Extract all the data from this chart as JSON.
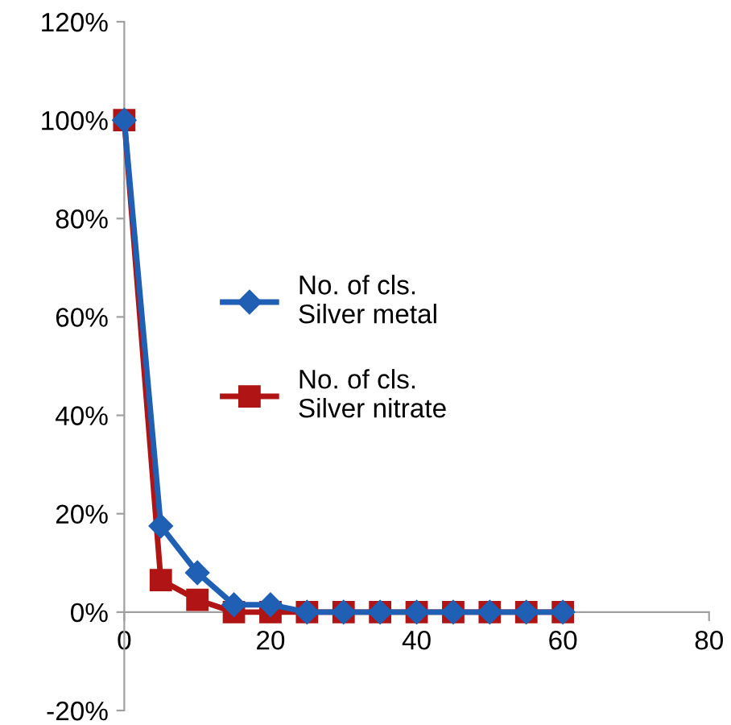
{
  "chart_data": {
    "type": "line",
    "x": [
      0,
      5,
      10,
      15,
      20,
      25,
      30,
      35,
      40,
      45,
      50,
      55,
      60
    ],
    "series": [
      {
        "name": "No. of cls.\nSilver metal",
        "color": "#1f5fb4",
        "marker": "diamond",
        "values": [
          100,
          17.5,
          8,
          1.5,
          1.5,
          0,
          0,
          0,
          0,
          0,
          0,
          0,
          0
        ]
      },
      {
        "name": "No. of cls.\nSilver nitrate",
        "color": "#b01414",
        "marker": "square",
        "values": [
          100,
          6.5,
          2.5,
          0,
          0,
          0,
          0,
          0,
          0,
          0,
          0,
          0,
          0
        ]
      }
    ],
    "xlim": [
      0,
      80
    ],
    "xticks": [
      0,
      20,
      40,
      60,
      80
    ],
    "ylim": [
      -20,
      120
    ],
    "yticks": [
      {
        "value": -20,
        "label": "-20%"
      },
      {
        "value": 0,
        "label": "0%"
      },
      {
        "value": 20,
        "label": "20%"
      },
      {
        "value": 40,
        "label": "40%"
      },
      {
        "value": 60,
        "label": "60%"
      },
      {
        "value": 80,
        "label": "80%"
      },
      {
        "value": 100,
        "label": "100%"
      },
      {
        "value": 120,
        "label": "120%"
      }
    ],
    "grid": false,
    "legend": "center",
    "line_style": "solid"
  }
}
